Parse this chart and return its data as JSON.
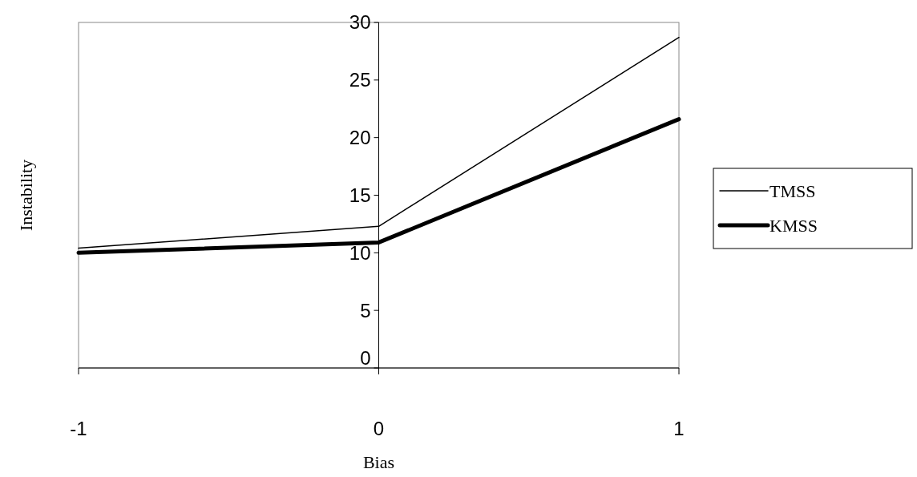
{
  "chart_data": {
    "type": "line",
    "xlabel": "Bias",
    "ylabel": "Instability",
    "x": [
      -1,
      0,
      1
    ],
    "series": [
      {
        "name": "TMSS",
        "color": "#000000",
        "values": [
          10.4,
          12.3,
          28.7
        ]
      },
      {
        "name": "KMSS",
        "color": "#000000",
        "values": [
          10,
          10.9,
          21.6
        ]
      }
    ],
    "xlim": [
      -1,
      1
    ],
    "xticks": [
      -1,
      0,
      1
    ],
    "ylim": [
      0,
      30
    ],
    "yticks": [
      0,
      5,
      10,
      15,
      20,
      25,
      30
    ],
    "grid": false,
    "legend": "right",
    "marker": "none"
  }
}
